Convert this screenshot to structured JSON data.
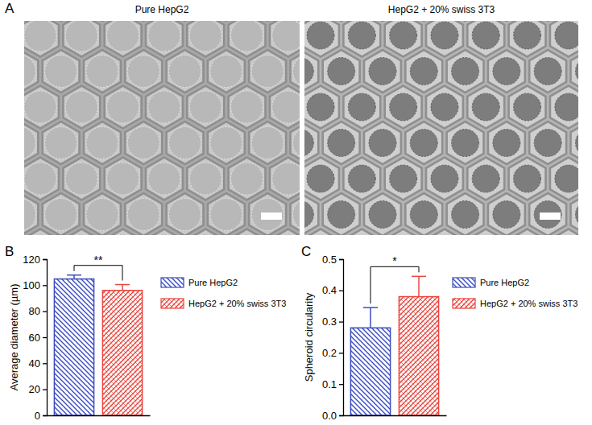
{
  "figure": {
    "panel_labels": [
      "A",
      "B",
      "C"
    ],
    "images": [
      {
        "title": "Pure HepG2"
      },
      {
        "title": "HepG2 + 20% swiss 3T3"
      }
    ]
  },
  "chart_data": [
    {
      "type": "bar",
      "y_label": "Average diameter (µm)",
      "categories": [
        null
      ],
      "series": [
        {
          "name": "Pure HepG2",
          "color": "#3b4cc0",
          "values": [
            104.8
          ],
          "errors": [
            3
          ]
        },
        {
          "name": "HepG2 + 20% swiss 3T3",
          "color": "#e8473f",
          "values": [
            96
          ],
          "errors": [
            4.5
          ]
        }
      ],
      "ylim": [
        0,
        120
      ],
      "yticks": [
        0,
        20,
        40,
        60,
        80,
        100,
        120
      ],
      "legend": "right",
      "annotation": "**"
    },
    {
      "type": "bar",
      "y_label": "Spheroid circularity",
      "categories": [
        null
      ],
      "series": [
        {
          "name": "Pure HepG2",
          "color": "#3b4cc0",
          "values": [
            0.28
          ],
          "errors": [
            0.065
          ]
        },
        {
          "name": "HepG2 + 20% swiss 3T3",
          "color": "#e8473f",
          "values": [
            0.38
          ],
          "errors": [
            0.065
          ]
        }
      ],
      "ylim": [
        0,
        0.5
      ],
      "yticks": [
        {
          "value": 0,
          "label": "0.0"
        },
        0.1,
        0.2,
        0.3,
        0.4,
        0.5
      ],
      "legend": "right",
      "annotation": "*"
    }
  ]
}
